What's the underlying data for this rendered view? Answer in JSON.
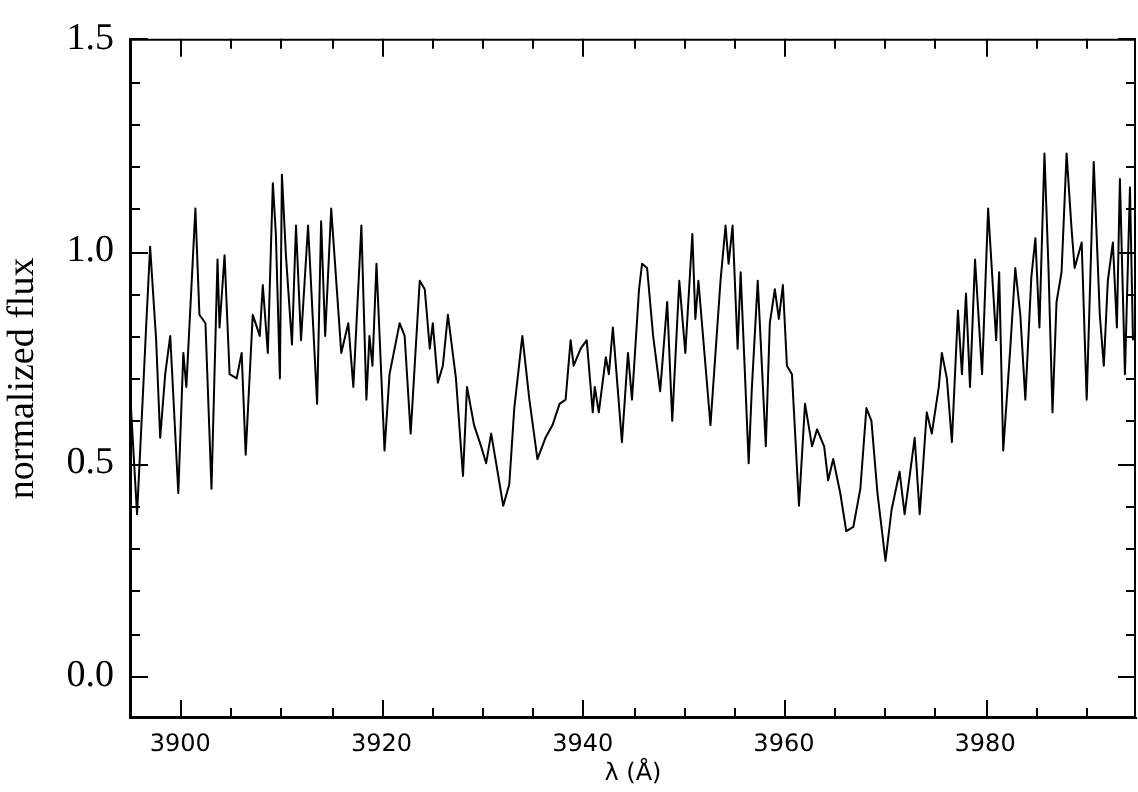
{
  "chart_data": {
    "type": "line",
    "xlabel": "λ (Å)",
    "ylabel": "normalized flux",
    "xlim": [
      3895,
      3995
    ],
    "ylim": [
      -0.1,
      1.5
    ],
    "xticks": [
      {
        "value": 3895,
        "label": null
      },
      3900,
      {
        "value": 3905,
        "label": null
      },
      {
        "value": 3910,
        "label": null
      },
      {
        "value": 3915,
        "label": null
      },
      3920,
      {
        "value": 3925,
        "label": null
      },
      {
        "value": 3930,
        "label": null
      },
      {
        "value": 3935,
        "label": null
      },
      3940,
      {
        "value": 3945,
        "label": null
      },
      {
        "value": 3950,
        "label": null
      },
      {
        "value": 3955,
        "label": null
      },
      3960,
      {
        "value": 3965,
        "label": null
      },
      {
        "value": 3970,
        "label": null
      },
      {
        "value": 3975,
        "label": null
      },
      3980,
      {
        "value": 3985,
        "label": null
      },
      {
        "value": 3990,
        "label": null
      }
    ],
    "yticks": [
      {
        "value": 0,
        "label": "0.0"
      },
      {
        "value": 0.1,
        "label": null
      },
      {
        "value": 0.2,
        "label": null
      },
      {
        "value": 0.3,
        "label": null
      },
      {
        "value": 0.4,
        "label": null
      },
      {
        "value": 0.5,
        "label": "0.5"
      },
      {
        "value": 0.6,
        "label": null
      },
      {
        "value": 0.7,
        "label": null
      },
      {
        "value": 0.8,
        "label": null
      },
      {
        "value": 0.9,
        "label": null
      },
      {
        "value": 1,
        "label": "1.0"
      },
      {
        "value": 1.1,
        "label": null
      },
      {
        "value": 1.2,
        "label": null
      },
      {
        "value": 1.3,
        "label": null
      },
      {
        "value": 1.4,
        "label": null
      },
      {
        "value": 1.5,
        "label": "1.5"
      }
    ],
    "line_style": "solid",
    "series": [
      {
        "color": "#000000",
        "x": [
          3895.0,
          3895.7,
          3896.3,
          3896.6,
          3897.0,
          3897.6,
          3898.0,
          3898.5,
          3899.0,
          3899.8,
          3900.3,
          3900.6,
          3901.5,
          3901.9,
          3902.5,
          3903.1,
          3903.7,
          3903.9,
          3904.4,
          3904.9,
          3905.6,
          3906.1,
          3906.5,
          3907.2,
          3907.9,
          3908.2,
          3908.7,
          3909.2,
          3909.5,
          3909.9,
          3910.1,
          3910.5,
          3911.1,
          3911.5,
          3912.0,
          3912.7,
          3913.6,
          3914.0,
          3914.4,
          3915.0,
          3916.0,
          3916.7,
          3917.2,
          3918.0,
          3918.5,
          3918.8,
          3919.1,
          3919.5,
          3920.3,
          3920.8,
          3921.8,
          3922.3,
          3922.9,
          3923.8,
          3924.3,
          3924.8,
          3925.1,
          3925.6,
          3926.1,
          3926.6,
          3927.4,
          3928.1,
          3928.5,
          3929.2,
          3929.9,
          3930.4,
          3930.9,
          3931.4,
          3932.1,
          3932.7,
          3933.2,
          3934.0,
          3934.7,
          3935.5,
          3936.3,
          3937.0,
          3937.7,
          3938.3,
          3938.8,
          3939.1,
          3939.8,
          3940.4,
          3941.0,
          3941.2,
          3941.6,
          3942.3,
          3942.6,
          3943.0,
          3943.5,
          3943.9,
          3944.5,
          3944.9,
          3945.6,
          3945.9,
          3946.4,
          3947.0,
          3947.7,
          3948.4,
          3948.9,
          3949.6,
          3950.2,
          3950.9,
          3951.2,
          3951.5,
          3952.7,
          3953.7,
          3954.2,
          3954.5,
          3954.9,
          3955.4,
          3955.7,
          3956.5,
          3956.8,
          3957.4,
          3958.2,
          3958.6,
          3959.1,
          3959.5,
          3959.9,
          3960.3,
          3960.8,
          3961.5,
          3962.1,
          3962.8,
          3963.3,
          3964.0,
          3964.4,
          3964.9,
          3965.6,
          3966.2,
          3966.9,
          3967.6,
          3968.2,
          3968.7,
          3969.3,
          3970.1,
          3970.7,
          3971.5,
          3972.0,
          3973.0,
          3973.5,
          3974.2,
          3974.7,
          3975.4,
          3975.7,
          3976.2,
          3976.7,
          3977.3,
          3977.7,
          3978.1,
          3978.5,
          3979.0,
          3979.7,
          3980.3,
          3981.1,
          3981.4,
          3981.8,
          3982.5,
          3983.0,
          3983.5,
          3984.0,
          3984.6,
          3985.0,
          3985.4,
          3985.9,
          3986.3,
          3986.7,
          3987.1,
          3987.6,
          3988.1,
          3988.6,
          3988.9,
          3989.6,
          3990.1,
          3990.8,
          3991.4,
          3991.8,
          3992.2,
          3992.7,
          3993.1,
          3993.4,
          3993.9,
          3994.4,
          3994.7
        ],
        "values": [
          0.67,
          0.38,
          0.67,
          0.82,
          1.01,
          0.79,
          0.56,
          0.71,
          0.8,
          0.43,
          0.76,
          0.68,
          1.1,
          0.85,
          0.83,
          0.44,
          0.98,
          0.82,
          0.99,
          0.71,
          0.7,
          0.76,
          0.52,
          0.85,
          0.8,
          0.92,
          0.76,
          1.16,
          1.04,
          0.7,
          1.18,
          0.99,
          0.78,
          1.06,
          0.79,
          1.06,
          0.64,
          1.07,
          0.8,
          1.1,
          0.76,
          0.83,
          0.68,
          1.06,
          0.65,
          0.8,
          0.73,
          0.97,
          0.53,
          0.71,
          0.83,
          0.8,
          0.57,
          0.93,
          0.91,
          0.77,
          0.83,
          0.69,
          0.73,
          0.85,
          0.7,
          0.47,
          0.68,
          0.59,
          0.54,
          0.5,
          0.57,
          0.5,
          0.4,
          0.45,
          0.63,
          0.8,
          0.65,
          0.51,
          0.56,
          0.59,
          0.64,
          0.65,
          0.79,
          0.73,
          0.77,
          0.79,
          0.62,
          0.68,
          0.62,
          0.75,
          0.71,
          0.82,
          0.67,
          0.55,
          0.76,
          0.65,
          0.91,
          0.97,
          0.96,
          0.8,
          0.67,
          0.88,
          0.6,
          0.93,
          0.76,
          1.04,
          0.84,
          0.93,
          0.59,
          0.93,
          1.06,
          0.97,
          1.06,
          0.77,
          0.95,
          0.5,
          0.67,
          0.93,
          0.54,
          0.83,
          0.91,
          0.84,
          0.92,
          0.73,
          0.71,
          0.4,
          0.64,
          0.54,
          0.58,
          0.54,
          0.46,
          0.51,
          0.43,
          0.34,
          0.35,
          0.44,
          0.63,
          0.6,
          0.43,
          0.27,
          0.39,
          0.48,
          0.38,
          0.56,
          0.38,
          0.62,
          0.57,
          0.68,
          0.76,
          0.7,
          0.55,
          0.86,
          0.71,
          0.9,
          0.68,
          0.98,
          0.71,
          1.1,
          0.79,
          0.95,
          0.53,
          0.77,
          0.96,
          0.85,
          0.65,
          0.94,
          1.03,
          0.82,
          1.23,
          0.96,
          0.62,
          0.88,
          0.95,
          1.23,
          1.05,
          0.96,
          1.02,
          0.65,
          1.21,
          0.85,
          0.73,
          0.93,
          1.02,
          0.82,
          1.17,
          0.71,
          1.15,
          0.79
        ]
      }
    ]
  }
}
